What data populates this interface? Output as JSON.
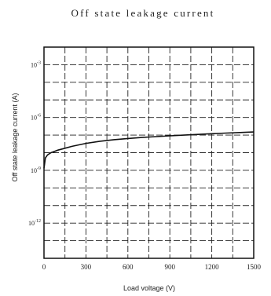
{
  "chart_data": {
    "type": "line",
    "title": "Off state leakage current",
    "xlabel": "Load voltage (V)",
    "ylabel": "Off state leakage current (A)",
    "xlim": [
      0,
      1500
    ],
    "x_ticks": [
      "0",
      "300",
      "600",
      "900",
      "1200",
      "1500"
    ],
    "y_scale": "log",
    "ylim": [
      1e-14,
      0.01
    ],
    "y_ticks": [
      {
        "mant": "10",
        "exp": "-3"
      },
      {
        "mant": "10",
        "exp": "-6"
      },
      {
        "mant": "10",
        "exp": "-9"
      },
      {
        "mant": "10",
        "exp": "-12"
      }
    ],
    "grid": true,
    "grid_style": "dashed",
    "series": [
      {
        "x": [
          0,
          10,
          25,
          50,
          100,
          150,
          200,
          300,
          400,
          500,
          600,
          700,
          800,
          900,
          1000,
          1100,
          1200,
          1300,
          1400,
          1500
        ],
        "y": [
          1.3e-09,
          5e-09,
          7.5e-09,
          1e-08,
          1.4e-08,
          1.8e-08,
          2.3e-08,
          3.4e-08,
          4.5e-08,
          5.5e-08,
          6.4e-08,
          7.3e-08,
          8.2e-08,
          9.1e-08,
          1e-07,
          1.1e-07,
          1.2e-07,
          1.3e-07,
          1.4e-07,
          1.5e-07
        ]
      }
    ],
    "annotations": [
      "·"
    ]
  }
}
